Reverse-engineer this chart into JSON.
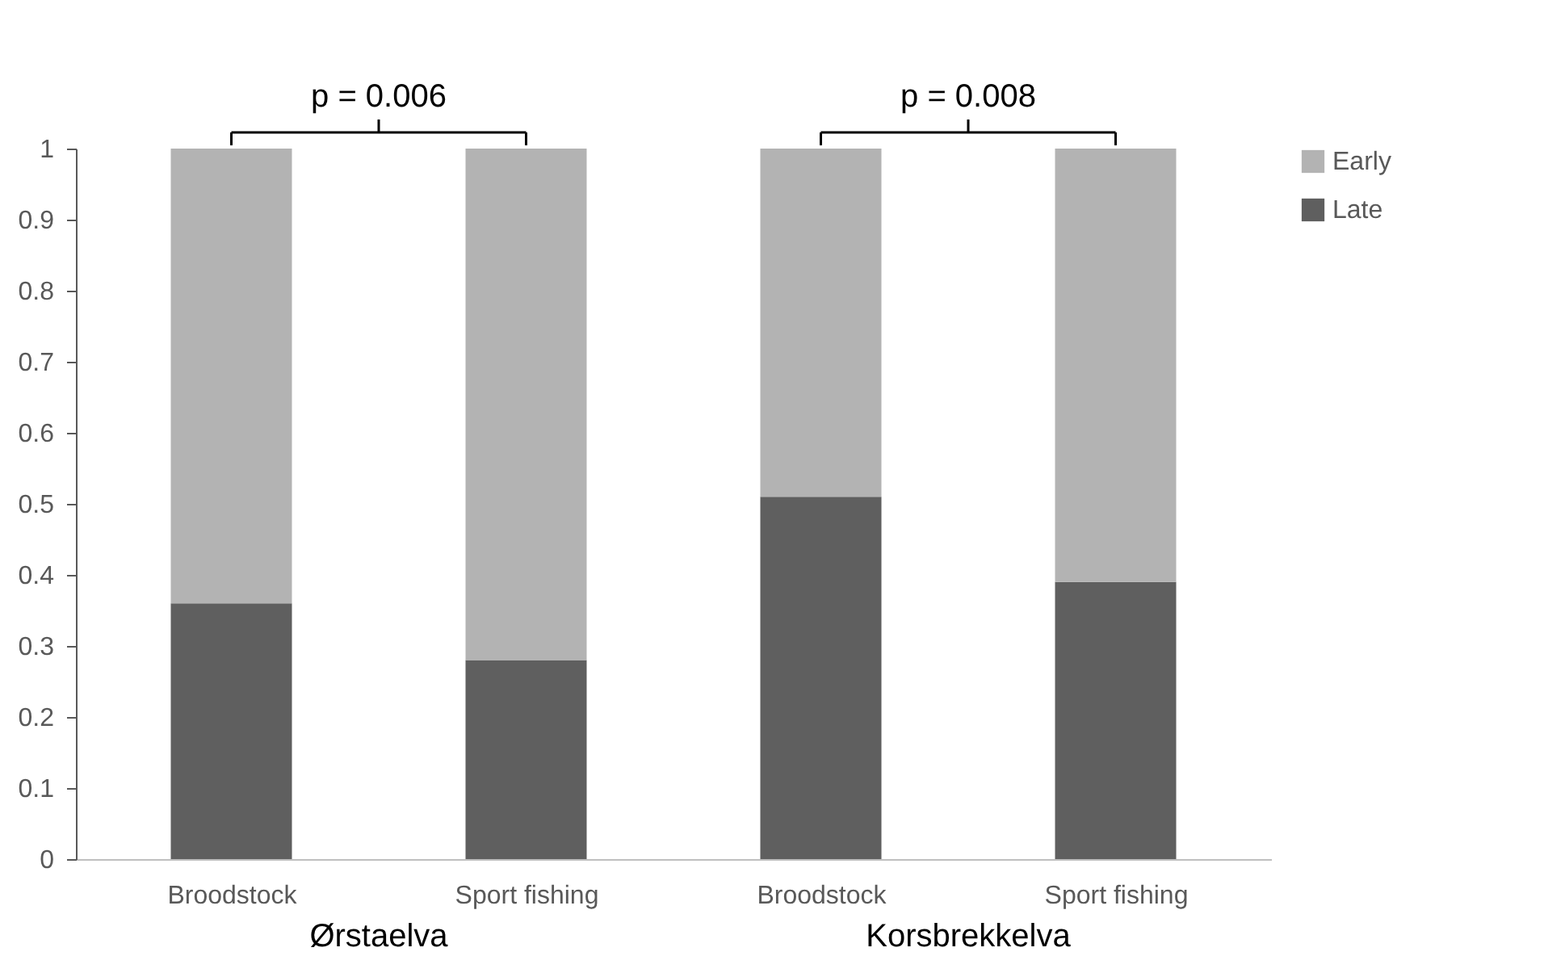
{
  "chart_data": {
    "type": "bar",
    "stacked": true,
    "categories": [
      "Broodstock",
      "Sport fishing",
      "Broodstock",
      "Sport fishing"
    ],
    "series": [
      {
        "name": "Late",
        "color": "#5f5f5f",
        "values": [
          0.36,
          0.28,
          0.51,
          0.39
        ]
      },
      {
        "name": "Early",
        "color": "#b3b3b3",
        "values": [
          0.64,
          0.72,
          0.49,
          0.61
        ]
      }
    ],
    "ylim": [
      0,
      1
    ],
    "yticks": [
      0,
      0.1,
      0.2,
      0.3,
      0.4,
      0.5,
      0.6,
      0.7,
      0.8,
      0.9,
      1
    ],
    "grid": false,
    "legend": "right",
    "annotations": [
      "p = 0.006",
      "p = 0.008",
      "Ørstaelva",
      "Korsbrekkelva"
    ]
  }
}
